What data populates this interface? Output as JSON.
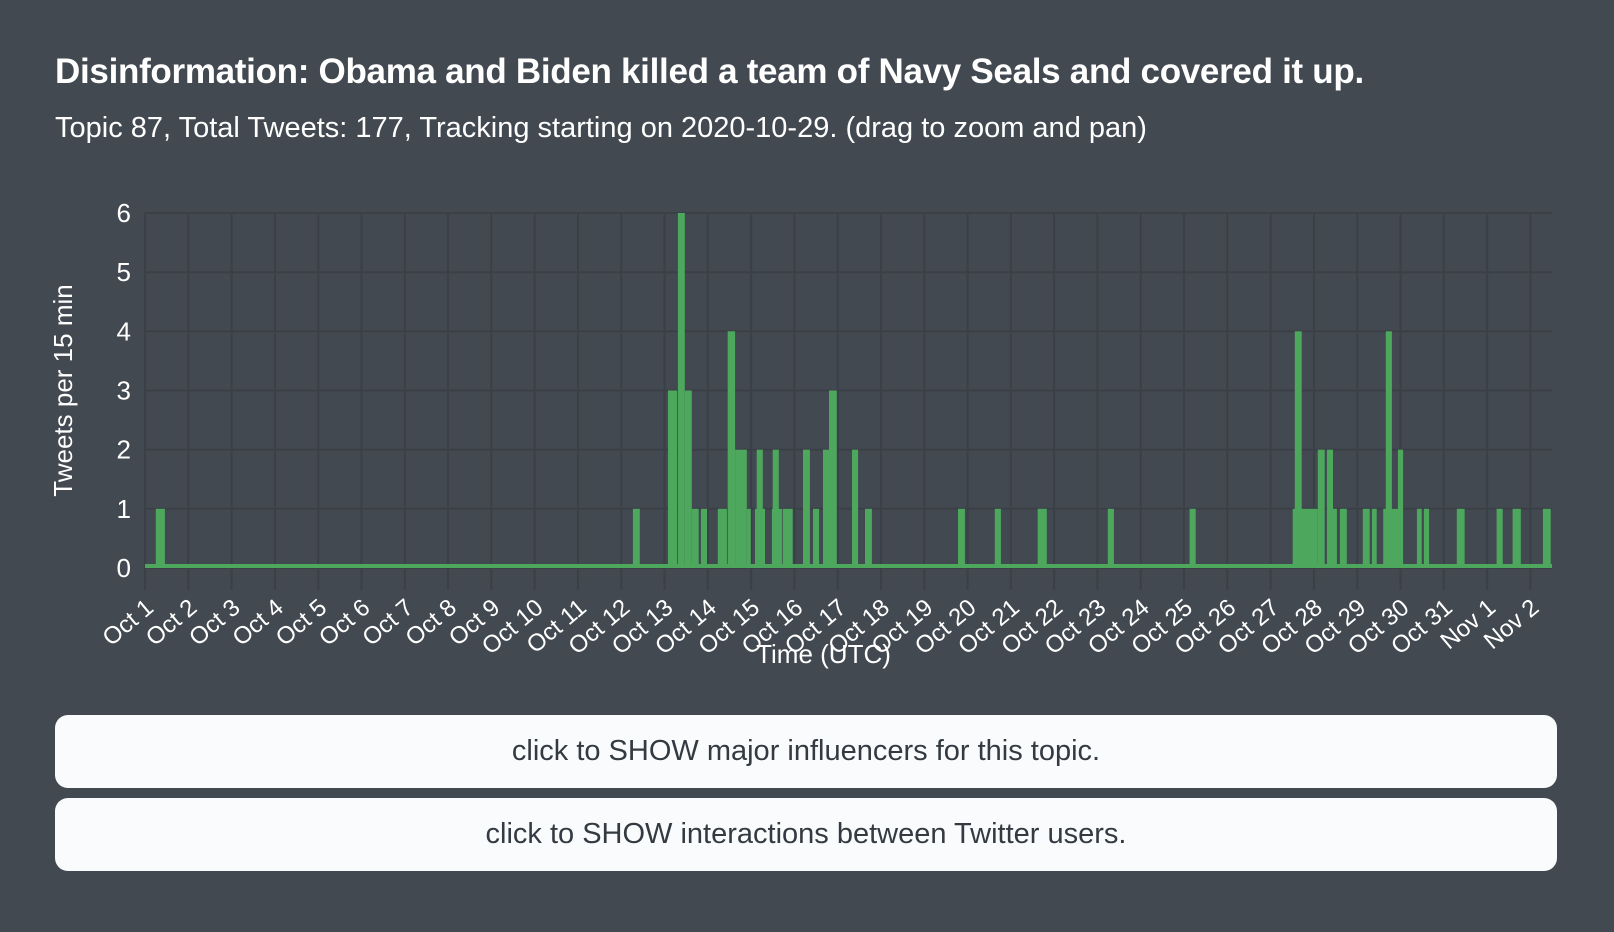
{
  "header": {
    "title": "Disinformation: Obama and Biden killed a team of Navy Seals and covered it up.",
    "subtitle": "Topic 87, Total Tweets: 177, Tracking starting on 2020-10-29. (drag to zoom and pan)"
  },
  "colors": {
    "background": "#424950",
    "grid": "#3a4046",
    "axis_text": "#ffffff",
    "series_green": "#4da85e",
    "button_bg": "#fafbfc",
    "button_text": "#333a41"
  },
  "chart_data": {
    "type": "bar",
    "title": "",
    "xlabel": "Time (UTC)",
    "ylabel": "Tweets per 15 min",
    "ylim": [
      0,
      6
    ],
    "y_ticks": [
      0,
      1,
      2,
      3,
      4,
      5,
      6
    ],
    "grid": true,
    "interaction_hint": "drag to zoom and pan",
    "bar_color": "#4da85e",
    "x_tick_labels": [
      "Oct 1",
      "Oct 2",
      "Oct 3",
      "Oct 4",
      "Oct 5",
      "Oct 6",
      "Oct 7",
      "Oct 8",
      "Oct 9",
      "Oct 10",
      "Oct 11",
      "Oct 12",
      "Oct 13",
      "Oct 14",
      "Oct 15",
      "Oct 16",
      "Oct 17",
      "Oct 18",
      "Oct 19",
      "Oct 20",
      "Oct 21",
      "Oct 22",
      "Oct 23",
      "Oct 24",
      "Oct 25",
      "Oct 26",
      "Oct 27",
      "Oct 28",
      "Oct 29",
      "Oct 30",
      "Oct 31",
      "Nov 1",
      "Nov 2"
    ],
    "x_range_days": [
      0,
      32.5
    ],
    "x_unit": "days since Oct 1 (UTC)",
    "segments_day_from_to_value": [
      [
        0.25,
        0.46,
        1
      ],
      [
        11.27,
        11.43,
        1
      ],
      [
        12.08,
        12.29,
        3
      ],
      [
        12.31,
        12.47,
        6
      ],
      [
        12.47,
        12.63,
        3
      ],
      [
        12.63,
        12.79,
        1
      ],
      [
        12.84,
        12.98,
        1
      ],
      [
        13.23,
        13.44,
        1
      ],
      [
        13.46,
        13.63,
        4
      ],
      [
        13.63,
        13.9,
        2
      ],
      [
        13.9,
        13.99,
        1
      ],
      [
        14.09,
        14.32,
        1
      ],
      [
        14.13,
        14.27,
        2
      ],
      [
        14.48,
        14.71,
        1
      ],
      [
        14.5,
        14.64,
        2
      ],
      [
        14.73,
        14.96,
        1
      ],
      [
        15.2,
        15.36,
        2
      ],
      [
        15.43,
        15.57,
        1
      ],
      [
        15.66,
        15.8,
        2
      ],
      [
        15.8,
        15.98,
        3
      ],
      [
        16.33,
        16.47,
        2
      ],
      [
        16.63,
        16.79,
        1
      ],
      [
        18.78,
        18.94,
        1
      ],
      [
        19.63,
        19.77,
        1
      ],
      [
        20.62,
        20.83,
        1
      ],
      [
        22.24,
        22.38,
        1
      ],
      [
        24.13,
        24.27,
        1
      ],
      [
        26.51,
        27.09,
        1
      ],
      [
        26.56,
        26.72,
        4
      ],
      [
        27.09,
        27.25,
        2
      ],
      [
        27.3,
        27.44,
        2
      ],
      [
        27.44,
        27.5,
        1
      ],
      [
        27.6,
        27.76,
        1
      ],
      [
        28.13,
        28.29,
        1
      ],
      [
        28.34,
        28.45,
        1
      ],
      [
        28.6,
        29.03,
        1
      ],
      [
        28.66,
        28.8,
        4
      ],
      [
        28.94,
        29.06,
        2
      ],
      [
        29.38,
        29.49,
        1
      ],
      [
        29.54,
        29.66,
        1
      ],
      [
        30.3,
        30.48,
        1
      ],
      [
        31.22,
        31.36,
        1
      ],
      [
        31.59,
        31.78,
        1
      ],
      [
        32.29,
        32.47,
        1
      ]
    ]
  },
  "buttons": {
    "influencers_label": "click to SHOW major influencers for this topic.",
    "interactions_label": "click to SHOW interactions between Twitter users."
  }
}
